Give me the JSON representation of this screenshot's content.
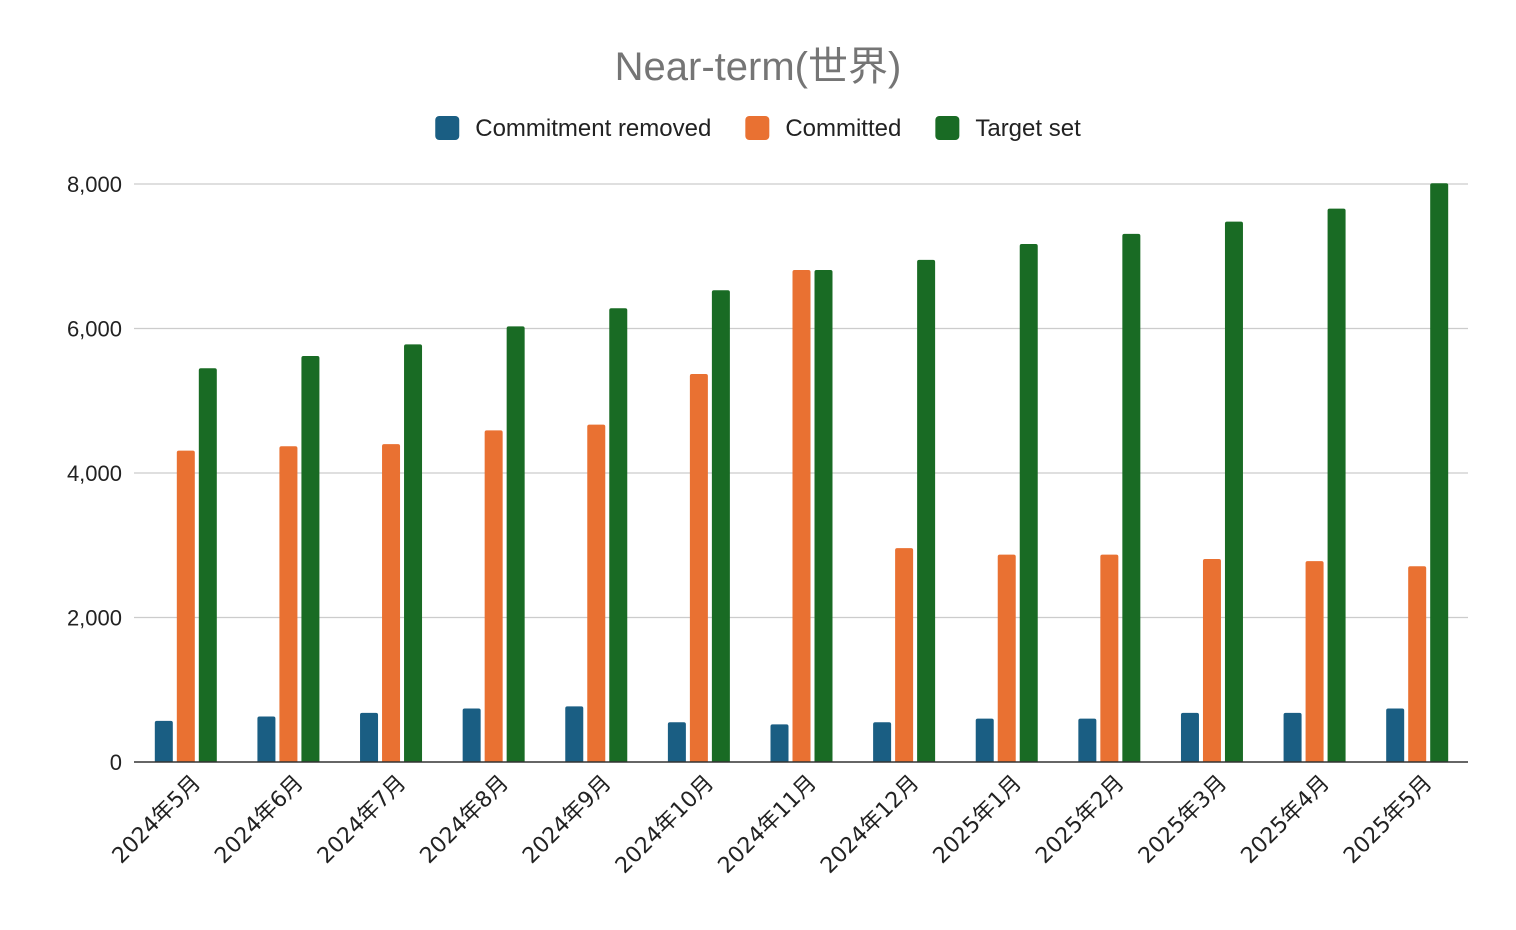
{
  "chart_data": {
    "type": "bar",
    "title": "Near-term(世界)",
    "xlabel": "",
    "ylabel": "",
    "ylim": [
      0,
      8000
    ],
    "yticks": [
      0,
      2000,
      4000,
      6000,
      8000
    ],
    "ytick_labels": [
      "0",
      "2,000",
      "4,000",
      "6,000",
      "8,000"
    ],
    "grid": true,
    "legend_position": "top",
    "categories": [
      "2024年5月",
      "2024年6月",
      "2024年7月",
      "2024年8月",
      "2024年9月",
      "2024年10月",
      "2024年11月",
      "2024年12月",
      "2025年1月",
      "2025年2月",
      "2025年3月",
      "2025年4月",
      "2025年5月"
    ],
    "series": [
      {
        "name": "Commitment removed",
        "color": "#1a5e83",
        "values": [
          570,
          630,
          680,
          740,
          770,
          550,
          520,
          550,
          600,
          600,
          680,
          680,
          740
        ]
      },
      {
        "name": "Committed",
        "color": "#e97132",
        "values": [
          4310,
          4370,
          4400,
          4590,
          4670,
          5370,
          6810,
          2960,
          2870,
          2870,
          2810,
          2780,
          2710
        ]
      },
      {
        "name": "Target set",
        "color": "#196b24",
        "values": [
          5450,
          5620,
          5780,
          6030,
          6280,
          6530,
          6810,
          6950,
          7170,
          7310,
          7480,
          7660,
          8010
        ]
      }
    ]
  }
}
